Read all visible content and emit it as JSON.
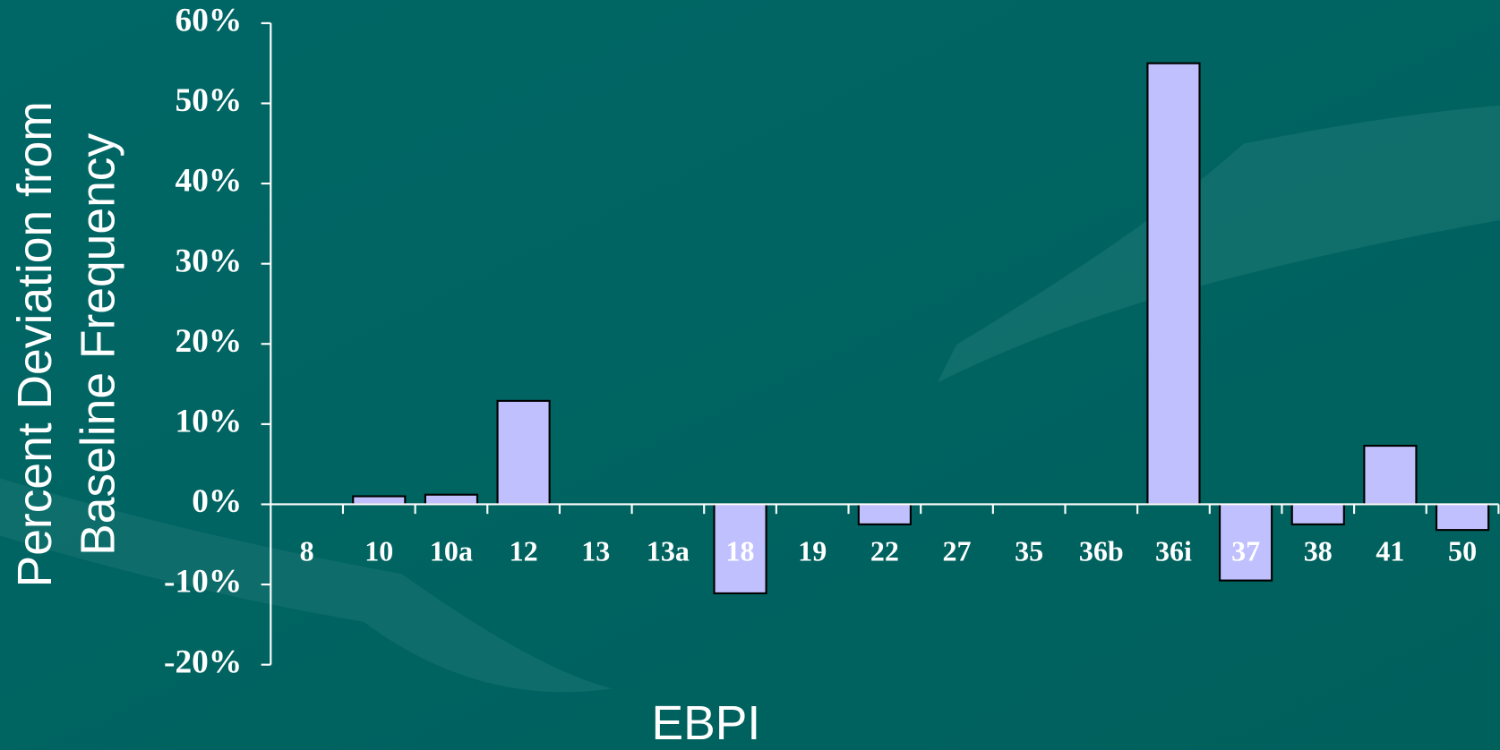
{
  "chart_data": {
    "type": "bar",
    "ylabel": [
      "Percent Deviation from",
      "Baseline Frequency"
    ],
    "xlabel": "EBPI",
    "categories": [
      "8",
      "10",
      "10a",
      "12",
      "13",
      "13a",
      "18",
      "19",
      "22",
      "27",
      "35",
      "36b",
      "36i",
      "37",
      "38",
      "41",
      "50"
    ],
    "values": [
      0,
      1,
      1.2,
      12.9,
      0,
      0,
      -11.1,
      0,
      -2.5,
      0,
      0,
      0,
      55,
      -9.5,
      -2.5,
      7.3,
      -3.2
    ],
    "color": "#c0c0ff",
    "ylim": [
      -20,
      60
    ],
    "yticks": [
      {
        "value": -20,
        "label": "-20%"
      },
      {
        "value": -10,
        "label": "-10%"
      },
      {
        "value": 0,
        "label": "0%"
      },
      {
        "value": 10,
        "label": "10%"
      },
      {
        "value": 20,
        "label": "20%"
      },
      {
        "value": 30,
        "label": "30%"
      },
      {
        "value": 40,
        "label": "40%"
      },
      {
        "value": 50,
        "label": "50%"
      },
      {
        "value": 60,
        "label": "60%"
      }
    ]
  }
}
